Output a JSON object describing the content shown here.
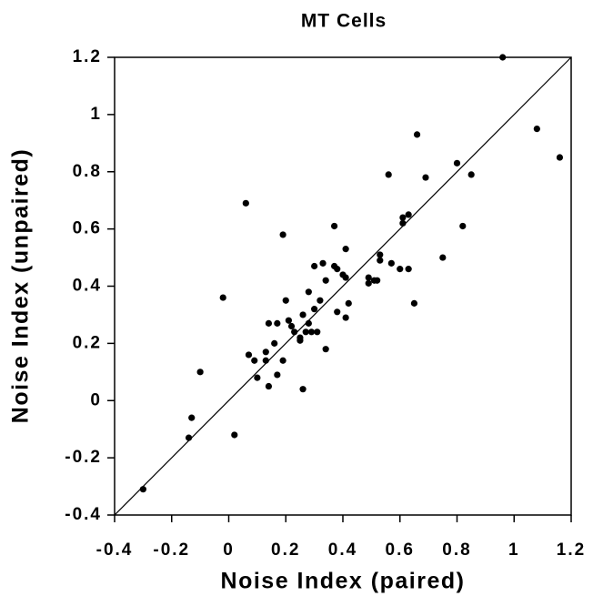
{
  "chart_data": {
    "type": "scatter",
    "title": "MT Cells",
    "x_label": "Noise Index (paired)",
    "y_label": "Noise Index (unpaired)",
    "color": "#000000",
    "diagonal": true,
    "xlim": [
      -0.4,
      1.2
    ],
    "ylim": [
      -0.4,
      1.2
    ],
    "xticks": [
      -0.4,
      -0.2,
      0,
      0.2,
      0.4,
      0.6,
      0.8,
      1,
      1.2
    ],
    "yticks": [
      -0.4,
      -0.2,
      0,
      0.2,
      0.4,
      0.6,
      0.8,
      1,
      1.2
    ],
    "x": [
      -0.3,
      -0.14,
      -0.13,
      -0.1,
      -0.02,
      0.02,
      0.06,
      0.07,
      0.09,
      0.1,
      0.13,
      0.13,
      0.14,
      0.14,
      0.16,
      0.17,
      0.17,
      0.19,
      0.19,
      0.2,
      0.21,
      0.22,
      0.23,
      0.25,
      0.25,
      0.26,
      0.26,
      0.27,
      0.28,
      0.28,
      0.29,
      0.3,
      0.3,
      0.31,
      0.32,
      0.33,
      0.34,
      0.34,
      0.37,
      0.37,
      0.38,
      0.38,
      0.4,
      0.41,
      0.41,
      0.42,
      0.41,
      0.49,
      0.49,
      0.51,
      0.52,
      0.53,
      0.53,
      0.56,
      0.57,
      0.6,
      0.61,
      0.61,
      0.63,
      0.63,
      0.65,
      0.66,
      0.69,
      0.75,
      0.8,
      0.82,
      0.85,
      0.96,
      1.08,
      1.16
    ],
    "values": [
      -0.31,
      -0.13,
      -0.06,
      0.1,
      0.36,
      -0.12,
      0.69,
      0.16,
      0.14,
      0.08,
      0.17,
      0.14,
      0.27,
      0.05,
      0.2,
      0.27,
      0.09,
      0.58,
      0.14,
      0.35,
      0.28,
      0.26,
      0.24,
      0.22,
      0.21,
      0.04,
      0.3,
      0.24,
      0.38,
      0.27,
      0.24,
      0.47,
      0.32,
      0.24,
      0.35,
      0.48,
      0.42,
      0.18,
      0.61,
      0.47,
      0.31,
      0.46,
      0.44,
      0.43,
      0.53,
      0.34,
      0.29,
      0.43,
      0.41,
      0.42,
      0.42,
      0.51,
      0.49,
      0.79,
      0.48,
      0.46,
      0.62,
      0.64,
      0.65,
      0.46,
      0.34,
      0.93,
      0.78,
      0.5,
      0.83,
      0.61,
      0.79,
      1.2,
      0.95,
      0.85
    ]
  }
}
